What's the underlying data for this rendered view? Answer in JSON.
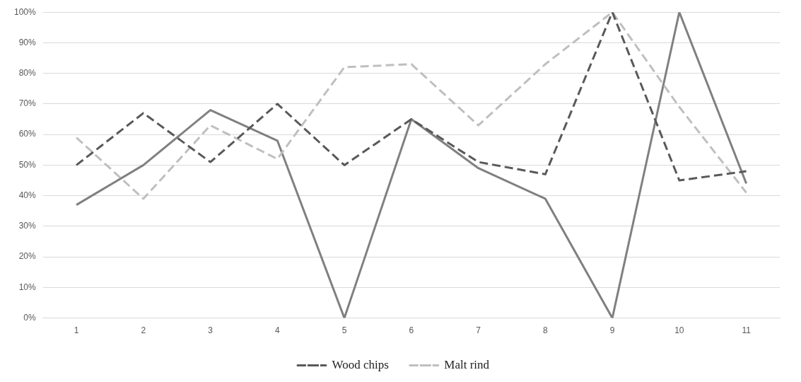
{
  "chart_data": {
    "type": "line",
    "categories": [
      "1",
      "2",
      "3",
      "4",
      "5",
      "6",
      "7",
      "8",
      "9",
      "10",
      "11"
    ],
    "series": [
      {
        "name": "Wood chips",
        "color": "#595959",
        "line_style": "dashed",
        "values": [
          50,
          67,
          51,
          70,
          50,
          65,
          51,
          47,
          100,
          45,
          48
        ]
      },
      {
        "name": "Malt rind",
        "color": "#bfbfbf",
        "line_style": "dashed",
        "values": [
          59,
          39,
          63,
          52,
          82,
          83,
          63,
          83,
          100,
          69,
          41
        ]
      },
      {
        "color": "#808080",
        "line_style": "solid",
        "values": [
          37,
          50,
          68,
          58,
          0,
          65,
          49,
          39,
          0,
          100,
          44
        ]
      }
    ],
    "ylim": [
      0,
      100
    ],
    "yticks": [
      {
        "value": 0,
        "label": "0%"
      },
      {
        "value": 10,
        "label": "10%"
      },
      {
        "value": 20,
        "label": "20%"
      },
      {
        "value": 30,
        "label": "30%"
      },
      {
        "value": 40,
        "label": "40%"
      },
      {
        "value": 50,
        "label": "50%"
      },
      {
        "value": 60,
        "label": "60%"
      },
      {
        "value": 70,
        "label": "70%"
      },
      {
        "value": 80,
        "label": "80%"
      },
      {
        "value": 90,
        "label": "90%"
      },
      {
        "value": 100,
        "label": "100%"
      }
    ],
    "grid": "y",
    "legend": "bottom",
    "marker": "none"
  }
}
